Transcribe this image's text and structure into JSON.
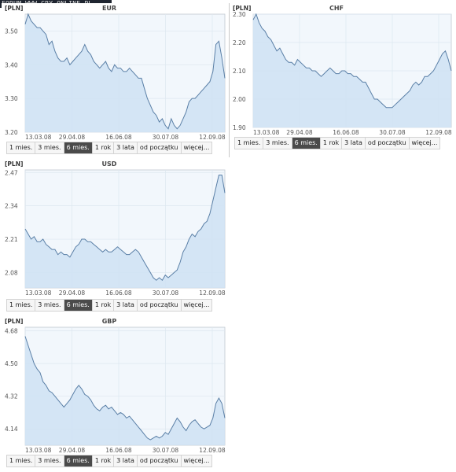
{
  "forum_banner": "FORUM WWW.GRY-ONLINE.PL",
  "range_buttons": [
    "1 mies.",
    "3 mies.",
    "6 mies.",
    "1 rok",
    "3 lata",
    "od początku",
    "więcej..."
  ],
  "active_range": "6 mies.",
  "chart_data": [
    {
      "type": "area",
      "title": "EUR",
      "unit": "[PLN]",
      "ylim": [
        3.2,
        3.55
      ],
      "yticks": [
        "3.20",
        "3.30",
        "3.40",
        "3.50"
      ],
      "ytick_values": [
        3.2,
        3.3,
        3.4,
        3.5
      ],
      "xticks": [
        "13.03.08",
        "29.04.08",
        "16.06.08",
        "30.07.08",
        "12.09.08"
      ],
      "grid": true,
      "colors": {
        "line": "#5a7fa6",
        "fill": "#cfe2f3",
        "plot_bg": "#f2f7fc",
        "grid": "#dde7f0"
      },
      "values": [
        3.52,
        3.55,
        3.53,
        3.52,
        3.51,
        3.51,
        3.5,
        3.49,
        3.46,
        3.47,
        3.44,
        3.42,
        3.41,
        3.41,
        3.42,
        3.4,
        3.41,
        3.42,
        3.43,
        3.44,
        3.46,
        3.44,
        3.43,
        3.41,
        3.4,
        3.39,
        3.4,
        3.41,
        3.39,
        3.38,
        3.4,
        3.39,
        3.39,
        3.38,
        3.38,
        3.39,
        3.38,
        3.37,
        3.36,
        3.36,
        3.33,
        3.3,
        3.28,
        3.26,
        3.25,
        3.23,
        3.24,
        3.22,
        3.21,
        3.24,
        3.22,
        3.21,
        3.22,
        3.24,
        3.26,
        3.29,
        3.3,
        3.3,
        3.31,
        3.32,
        3.33,
        3.34,
        3.35,
        3.38,
        3.46,
        3.47,
        3.42,
        3.36
      ]
    },
    {
      "type": "area",
      "title": "CHF",
      "unit": "[PLN]",
      "ylim": [
        1.9,
        2.3
      ],
      "yticks": [
        "1.90",
        "2.00",
        "2.10",
        "2.20",
        "2.30"
      ],
      "ytick_values": [
        1.9,
        2.0,
        2.1,
        2.2,
        2.3
      ],
      "xticks": [
        "13.03.08",
        "29.04.08",
        "16.06.08",
        "30.07.08",
        "12.09.08"
      ],
      "grid": true,
      "colors": {
        "line": "#5a7fa6",
        "fill": "#cfe2f3",
        "plot_bg": "#f2f7fc",
        "grid": "#dde7f0"
      },
      "values": [
        2.28,
        2.3,
        2.27,
        2.25,
        2.24,
        2.22,
        2.21,
        2.19,
        2.17,
        2.18,
        2.16,
        2.14,
        2.13,
        2.13,
        2.12,
        2.14,
        2.13,
        2.12,
        2.11,
        2.11,
        2.1,
        2.1,
        2.09,
        2.08,
        2.09,
        2.1,
        2.11,
        2.1,
        2.09,
        2.09,
        2.1,
        2.1,
        2.09,
        2.09,
        2.08,
        2.08,
        2.07,
        2.06,
        2.06,
        2.04,
        2.02,
        2.0,
        2.0,
        1.99,
        1.98,
        1.97,
        1.97,
        1.97,
        1.98,
        1.99,
        2.0,
        2.01,
        2.02,
        2.03,
        2.05,
        2.06,
        2.05,
        2.06,
        2.08,
        2.08,
        2.09,
        2.1,
        2.12,
        2.14,
        2.16,
        2.17,
        2.14,
        2.1
      ]
    },
    {
      "type": "area",
      "title": "USD",
      "unit": "[PLN]",
      "ylim": [
        2.02,
        2.48
      ],
      "yticks": [
        "2.08",
        "2.21",
        "2.34",
        "2.47"
      ],
      "ytick_values": [
        2.08,
        2.21,
        2.34,
        2.47
      ],
      "xticks": [
        "13.03.08",
        "29.04.08",
        "16.06.08",
        "30.07.08",
        "12.09.08"
      ],
      "grid": true,
      "colors": {
        "line": "#5a7fa6",
        "fill": "#cfe2f3",
        "plot_bg": "#f2f7fc",
        "grid": "#dde7f0"
      },
      "values": [
        2.25,
        2.23,
        2.21,
        2.22,
        2.2,
        2.2,
        2.21,
        2.19,
        2.18,
        2.17,
        2.17,
        2.15,
        2.16,
        2.15,
        2.15,
        2.14,
        2.16,
        2.18,
        2.19,
        2.21,
        2.21,
        2.2,
        2.2,
        2.19,
        2.18,
        2.17,
        2.16,
        2.17,
        2.16,
        2.16,
        2.17,
        2.18,
        2.17,
        2.16,
        2.15,
        2.15,
        2.16,
        2.17,
        2.16,
        2.14,
        2.12,
        2.1,
        2.08,
        2.06,
        2.05,
        2.06,
        2.05,
        2.07,
        2.06,
        2.07,
        2.08,
        2.09,
        2.12,
        2.16,
        2.18,
        2.21,
        2.23,
        2.22,
        2.24,
        2.25,
        2.27,
        2.28,
        2.31,
        2.36,
        2.41,
        2.46,
        2.46,
        2.39
      ]
    },
    {
      "type": "area",
      "title": "GBP",
      "unit": "[PLN]",
      "ylim": [
        4.05,
        4.7
      ],
      "yticks": [
        "4.14",
        "4.32",
        "4.50",
        "4.68"
      ],
      "ytick_values": [
        4.14,
        4.32,
        4.5,
        4.68
      ],
      "xticks": [
        "13.03.08",
        "29.04.08",
        "16.06.08",
        "30.07.08",
        "12.09.08"
      ],
      "grid": true,
      "colors": {
        "line": "#5a7fa6",
        "fill": "#cfe2f3",
        "plot_bg": "#f2f7fc",
        "grid": "#dde7f0"
      },
      "values": [
        4.65,
        4.6,
        4.55,
        4.5,
        4.47,
        4.45,
        4.4,
        4.38,
        4.35,
        4.34,
        4.32,
        4.3,
        4.28,
        4.26,
        4.28,
        4.3,
        4.33,
        4.36,
        4.38,
        4.36,
        4.33,
        4.32,
        4.3,
        4.27,
        4.25,
        4.24,
        4.26,
        4.27,
        4.25,
        4.26,
        4.24,
        4.22,
        4.23,
        4.22,
        4.2,
        4.21,
        4.19,
        4.17,
        4.15,
        4.13,
        4.11,
        4.09,
        4.08,
        4.09,
        4.1,
        4.09,
        4.1,
        4.12,
        4.11,
        4.14,
        4.17,
        4.2,
        4.18,
        4.15,
        4.13,
        4.16,
        4.18,
        4.19,
        4.17,
        4.15,
        4.14,
        4.15,
        4.16,
        4.2,
        4.28,
        4.31,
        4.28,
        4.2
      ]
    }
  ]
}
